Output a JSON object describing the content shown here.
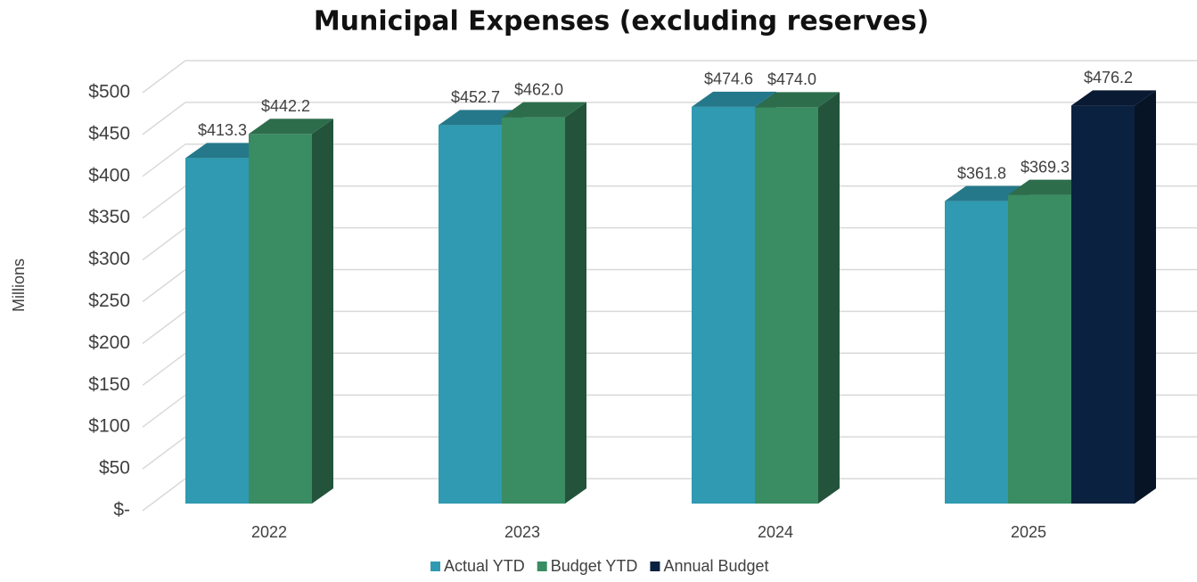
{
  "chart_data": {
    "type": "bar3d",
    "title": "Municipal Expenses (excluding reserves)",
    "y_label": "Millions",
    "categories": [
      "2022",
      "2023",
      "2024",
      "2025"
    ],
    "series": [
      {
        "name": "Actual YTD",
        "color": "#2f9ab1",
        "values": [
          413.3,
          452.7,
          474.6,
          361.8
        ],
        "value_labels": [
          "$413.3",
          "$452.7",
          "$474.6",
          "$361.8"
        ]
      },
      {
        "name": "Budget YTD",
        "color": "#3a8c62",
        "values": [
          442.2,
          462.0,
          474.0,
          369.3
        ],
        "value_labels": [
          "$442.2",
          "$462.0",
          "$474.0",
          "$369.3"
        ]
      },
      {
        "name": "Annual Budget",
        "color": "#0b2140",
        "values": [
          null,
          null,
          null,
          476.2
        ],
        "value_labels": [
          null,
          null,
          null,
          "$476.2"
        ]
      }
    ],
    "ylim": [
      0,
      500
    ],
    "yticks": [
      {
        "value": 0,
        "label": "$-"
      },
      {
        "value": 50,
        "label": "$50"
      },
      {
        "value": 100,
        "label": "$100"
      },
      {
        "value": 150,
        "label": "$150"
      },
      {
        "value": 200,
        "label": "$200"
      },
      {
        "value": 250,
        "label": "$250"
      },
      {
        "value": 300,
        "label": "$300"
      },
      {
        "value": 350,
        "label": "$350"
      },
      {
        "value": 400,
        "label": "$400"
      },
      {
        "value": 450,
        "label": "$450"
      },
      {
        "value": 500,
        "label": "$500"
      }
    ],
    "grid": true,
    "legend": "bottom"
  }
}
